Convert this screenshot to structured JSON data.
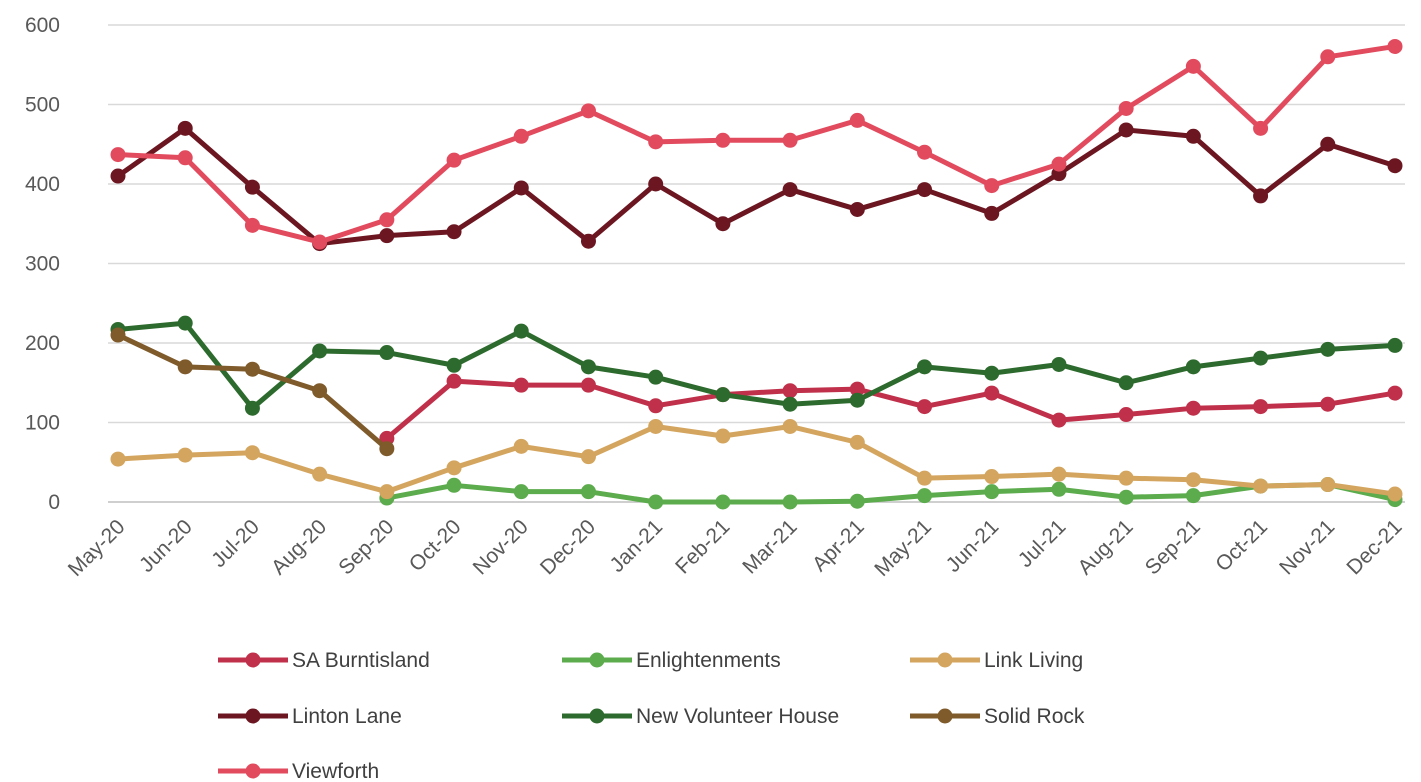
{
  "chart_data": {
    "type": "line",
    "title": "",
    "xlabel": "",
    "ylabel": "",
    "ylim": [
      0,
      600
    ],
    "yticks": [
      0,
      100,
      200,
      300,
      400,
      500,
      600
    ],
    "grid": true,
    "legend": "bottom",
    "categories": [
      "May-20",
      "Jun-20",
      "Jul-20",
      "Aug-20",
      "Sep-20",
      "Oct-20",
      "Nov-20",
      "Dec-20",
      "Jan-21",
      "Feb-21",
      "Mar-21",
      "Apr-21",
      "May-21",
      "Jun-21",
      "Jul-21",
      "Aug-21",
      "Sep-21",
      "Oct-21",
      "Nov-21",
      "Dec-21"
    ],
    "series": [
      {
        "name": "SA Burntisland",
        "color": "#c0304a",
        "values": [
          null,
          null,
          null,
          null,
          80,
          152,
          147,
          147,
          121,
          135,
          140,
          142,
          120,
          137,
          103,
          110,
          118,
          120,
          123,
          137
        ]
      },
      {
        "name": "Enlightenments",
        "color": "#5cab4c",
        "values": [
          null,
          null,
          null,
          null,
          5,
          21,
          13,
          13,
          0,
          0,
          0,
          1,
          8,
          13,
          16,
          6,
          8,
          20,
          22,
          3
        ]
      },
      {
        "name": "Link Living",
        "color": "#d4a55e",
        "values": [
          54,
          59,
          62,
          35,
          13,
          43,
          70,
          57,
          95,
          83,
          95,
          75,
          30,
          32,
          35,
          30,
          28,
          20,
          22,
          10
        ]
      },
      {
        "name": "Linton Lane",
        "color": "#6b1620",
        "values": [
          410,
          470,
          396,
          325,
          335,
          340,
          395,
          328,
          400,
          350,
          393,
          368,
          393,
          363,
          413,
          468,
          460,
          385,
          450,
          423
        ]
      },
      {
        "name": "New Volunteer House",
        "color": "#2d6a2d",
        "values": [
          217,
          225,
          118,
          190,
          188,
          172,
          215,
          170,
          157,
          135,
          123,
          128,
          170,
          162,
          173,
          150,
          170,
          181,
          192,
          197
        ]
      },
      {
        "name": "Solid Rock",
        "color": "#7f5a2a",
        "values": [
          210,
          170,
          167,
          140,
          67,
          null,
          null,
          null,
          null,
          null,
          null,
          null,
          null,
          null,
          null,
          null,
          null,
          null,
          null,
          null
        ]
      },
      {
        "name": "Viewforth",
        "color": "#e24a5e",
        "values": [
          437,
          433,
          348,
          327,
          355,
          430,
          460,
          492,
          453,
          455,
          455,
          480,
          440,
          398,
          425,
          495,
          548,
          470,
          560,
          573
        ]
      }
    ]
  }
}
